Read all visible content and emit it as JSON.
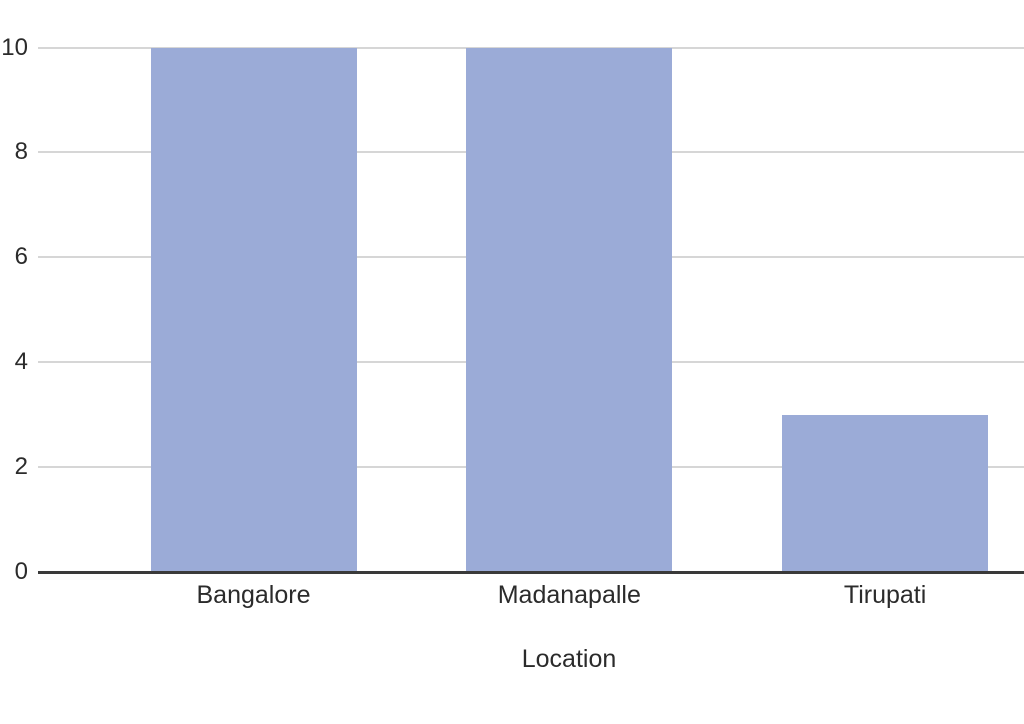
{
  "chart_data": {
    "type": "bar",
    "title": "",
    "categories": [
      "Bangalore",
      "Madanapalle",
      "Tirupati"
    ],
    "values": [
      10,
      10,
      3
    ],
    "xlabel": "Location",
    "ylabel": "",
    "ylim": [
      0,
      10
    ],
    "yticks": [
      0,
      2,
      4,
      6,
      8,
      10
    ],
    "grid": true,
    "legend_position": "none",
    "colors": {
      "bar": "#9babd7",
      "gridline": "#d6d6d6",
      "axis": "#3a3a3a",
      "text": "#2b2b2b",
      "background": "#ffffff"
    }
  }
}
